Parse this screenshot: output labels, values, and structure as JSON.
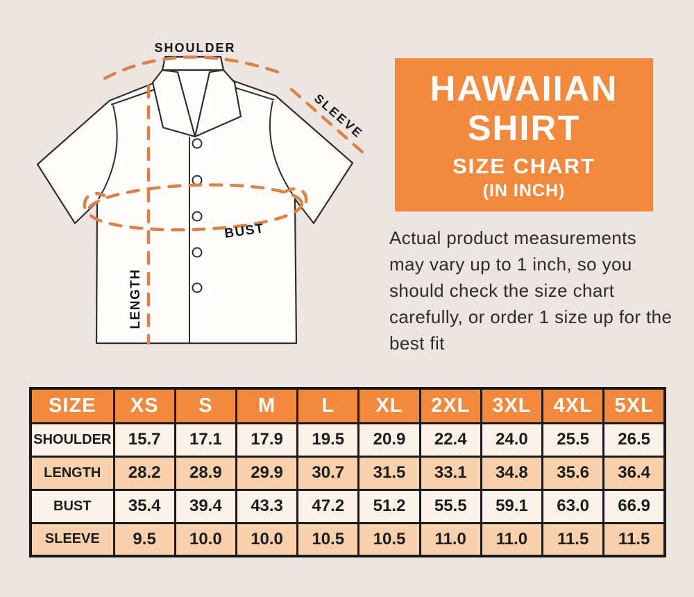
{
  "header": {
    "title_line1": "HAWAIIAN",
    "title_line2": "SHIRT",
    "subtitle": "SIZE CHART",
    "unit": "(IN INCH)"
  },
  "description": "Actual product measurements may vary up to 1 inch, so you should check the size chart carefully, or order 1 size up for the best fit",
  "diagram": {
    "shoulder_label": "SHOULDER",
    "sleeve_label": "SLEEVE",
    "bust_label": "BUST",
    "length_label": "LENGTH"
  },
  "colors": {
    "accent_orange": "#F2893D",
    "dash_orange": "#DA8348",
    "row_cream": "#FAF1E9",
    "row_peach": "#F8D0AC",
    "background": "#ECE5E1",
    "border_dark": "#1A1A1A",
    "text_dark": "#1D1D1D"
  },
  "chart_data": {
    "type": "table",
    "title": "HAWAIIAN SHIRT SIZE CHART (IN INCH)",
    "columns": [
      "SIZE",
      "XS",
      "S",
      "M",
      "L",
      "XL",
      "2XL",
      "3XL",
      "4XL",
      "5XL"
    ],
    "rows": [
      {
        "label": "SHOULDER",
        "values": [
          "15.7",
          "17.1",
          "17.9",
          "19.5",
          "20.9",
          "22.4",
          "24.0",
          "25.5",
          "26.5"
        ]
      },
      {
        "label": "LENGTH",
        "values": [
          "28.2",
          "28.9",
          "29.9",
          "30.7",
          "31.5",
          "33.1",
          "34.8",
          "35.6",
          "36.4"
        ]
      },
      {
        "label": "BUST",
        "values": [
          "35.4",
          "39.4",
          "43.3",
          "47.2",
          "51.2",
          "55.5",
          "59.1",
          "63.0",
          "66.9"
        ]
      },
      {
        "label": "SLEEVE",
        "values": [
          "9.5",
          "10.0",
          "10.0",
          "10.5",
          "10.5",
          "11.0",
          "11.0",
          "11.5",
          "11.5"
        ]
      }
    ]
  }
}
